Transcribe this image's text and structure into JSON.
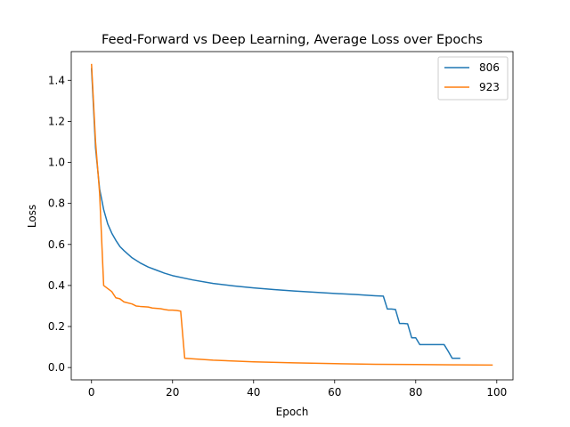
{
  "chart_data": {
    "type": "line",
    "title": "Feed-Forward vs Deep Learning, Average Loss over Epochs",
    "xlabel": "Epoch",
    "ylabel": "Loss",
    "xlim": [
      -5,
      104
    ],
    "ylim": [
      -0.06,
      1.54
    ],
    "xticks": [
      0,
      20,
      40,
      60,
      80,
      100
    ],
    "yticks": [
      0.0,
      0.2,
      0.4,
      0.6,
      0.8,
      1.0,
      1.2,
      1.4
    ],
    "grid": false,
    "legend_position": "top-right",
    "series": [
      {
        "name": "806",
        "color": "#1f77b4",
        "x": [
          0,
          1,
          2,
          3,
          4,
          5,
          6,
          7,
          8,
          10,
          12,
          14,
          16,
          18,
          20,
          25,
          30,
          35,
          40,
          45,
          50,
          55,
          60,
          65,
          70,
          72,
          73,
          74,
          75,
          76,
          77,
          78,
          79,
          80,
          81,
          82,
          87,
          88,
          89,
          90,
          91
        ],
        "y": [
          1.46,
          1.07,
          0.87,
          0.77,
          0.7,
          0.655,
          0.62,
          0.59,
          0.57,
          0.535,
          0.51,
          0.49,
          0.475,
          0.46,
          0.448,
          0.427,
          0.41,
          0.398,
          0.388,
          0.38,
          0.373,
          0.367,
          0.361,
          0.356,
          0.35,
          0.348,
          0.285,
          0.285,
          0.283,
          0.215,
          0.215,
          0.213,
          0.145,
          0.145,
          0.112,
          0.112,
          0.112,
          0.08,
          0.045,
          0.045,
          0.045
        ]
      },
      {
        "name": "923",
        "color": "#ff7f0e",
        "x": [
          0,
          1,
          2,
          3,
          5,
          6,
          7,
          8,
          10,
          11,
          12,
          14,
          15,
          17,
          18,
          19,
          20,
          21,
          22,
          23,
          30,
          40,
          50,
          60,
          70,
          80,
          90,
          99
        ],
        "y": [
          1.48,
          1.1,
          0.85,
          0.4,
          0.37,
          0.34,
          0.335,
          0.32,
          0.31,
          0.3,
          0.298,
          0.295,
          0.29,
          0.287,
          0.283,
          0.28,
          0.28,
          0.278,
          0.275,
          0.045,
          0.036,
          0.028,
          0.023,
          0.019,
          0.016,
          0.015,
          0.013,
          0.012
        ]
      }
    ]
  }
}
